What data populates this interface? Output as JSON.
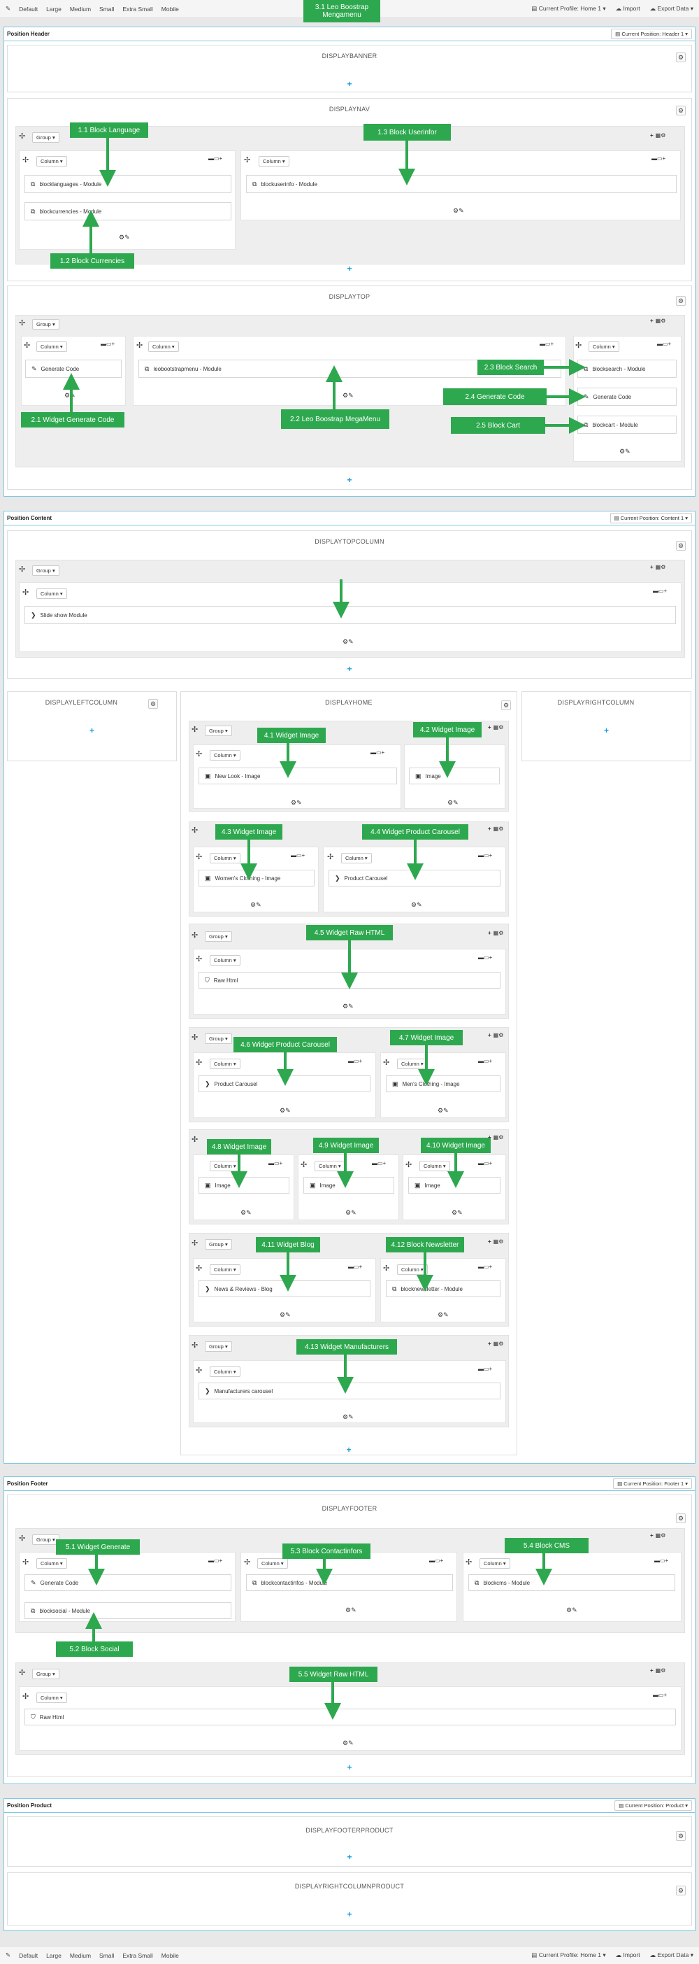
{
  "toolbar": {
    "edit_icon": "pencil-icon",
    "sizes": [
      "Default",
      "Large",
      "Medium",
      "Small",
      "Extra Small",
      "Mobile"
    ],
    "profile": "Current Profile: Home 1",
    "import": "Import",
    "export": "Export Data"
  },
  "common": {
    "group_label": "Group",
    "column_label": "Column"
  },
  "header": {
    "title": "Position Header",
    "position": "Current Position: Header 1",
    "hooks": [
      "DISPLAYBANNER",
      "DISPLAYNAV",
      "DISPLAYTOP"
    ],
    "modules": {
      "blocklanguages": "blocklanguages - Module",
      "blockcurrencies": "blockcurrencies - Module",
      "blockuserinfo": "blockuserinfo - Module",
      "generate_code": "Generate Code",
      "leobootstrapmenu": "leobootstrapmenu - Module",
      "blocksearch": "blocksearch - Module",
      "generate_code2": "Generate Code",
      "blockcart": "blockcart - Module"
    },
    "annotations": {
      "a11": "1.1 Block Language",
      "a12": "1.2 Block Currencies",
      "a13": "1.3 Block Userinfor",
      "a21": "2.1 Widget Generate Code",
      "a22": "2.2 Leo Boostrap MegaMenu",
      "a23": "2.3 Block Search",
      "a24": "2.4 Generate Code",
      "a25": "2.5 Block Cart"
    }
  },
  "content": {
    "title": "Position Content",
    "position": "Current Position: Content 1",
    "hooks": [
      "DISPLAYTOPCOLUMN",
      "DISPLAYLEFTCOLUMN",
      "DISPLAYHOME",
      "DISPLAYRIGHTCOLUMN"
    ],
    "modules": {
      "slideshow": "Slide show Module",
      "new_look": "New Look - Image",
      "image": "Image",
      "womens": "Women's Clothing - Image",
      "product_carousel": "Product Carousel",
      "raw_html": "Raw Html",
      "mens": "Men's Clothing - Image",
      "news": "News & Reviews - Blog",
      "newsletter": "blocknewsletter - Module",
      "manufacturers": "Manufacturers carousel"
    },
    "annotations": {
      "a31": "3.1 Leo Boostrap Mengamenu",
      "a41": "4.1 Widget Image",
      "a42": "4.2 Widget Image",
      "a43": "4.3 Widget Image",
      "a44": "4.4 Widget Product Carousel",
      "a45": "4.5 Widget Raw HTML",
      "a46": "4.6 Widget Product Carousel",
      "a47": "4.7 Widget Image",
      "a48": "4.8 Widget Image",
      "a49": "4.9 Widget Image",
      "a410": "4.10 Widget Image",
      "a411": "4.11 Widget Blog",
      "a412": "4.12 Block Newsletter",
      "a413": "4.13 Widget Manufacturers"
    }
  },
  "footer": {
    "title": "Position Footer",
    "position": "Current Position: Footer 1",
    "hooks": [
      "DISPLAYFOOTER"
    ],
    "modules": {
      "generate_code": "Generate Code",
      "blocksocial": "blocksocial - Module",
      "blockcontactinfos": "blockcontactinfos - Module",
      "blockcms": "blockcms - Module",
      "raw_html": "Raw Html"
    },
    "annotations": {
      "a51": "5.1 Widget Generate",
      "a52": "5.2 Block Social",
      "a53": "5.3 Block Contactinfors",
      "a54": "5.4 Block CMS",
      "a55": "5.5 Widget Raw HTML"
    }
  },
  "product": {
    "title": "Position Product",
    "position": "Current Position: Product",
    "hooks": [
      "DISPLAYFOOTERPRODUCT",
      "DISPLAYRIGHTCOLUMNPRODUCT"
    ]
  },
  "colors": {
    "accent": "#1a9be0",
    "annotation": "#2ea84f",
    "border": "#7ec8e3"
  }
}
